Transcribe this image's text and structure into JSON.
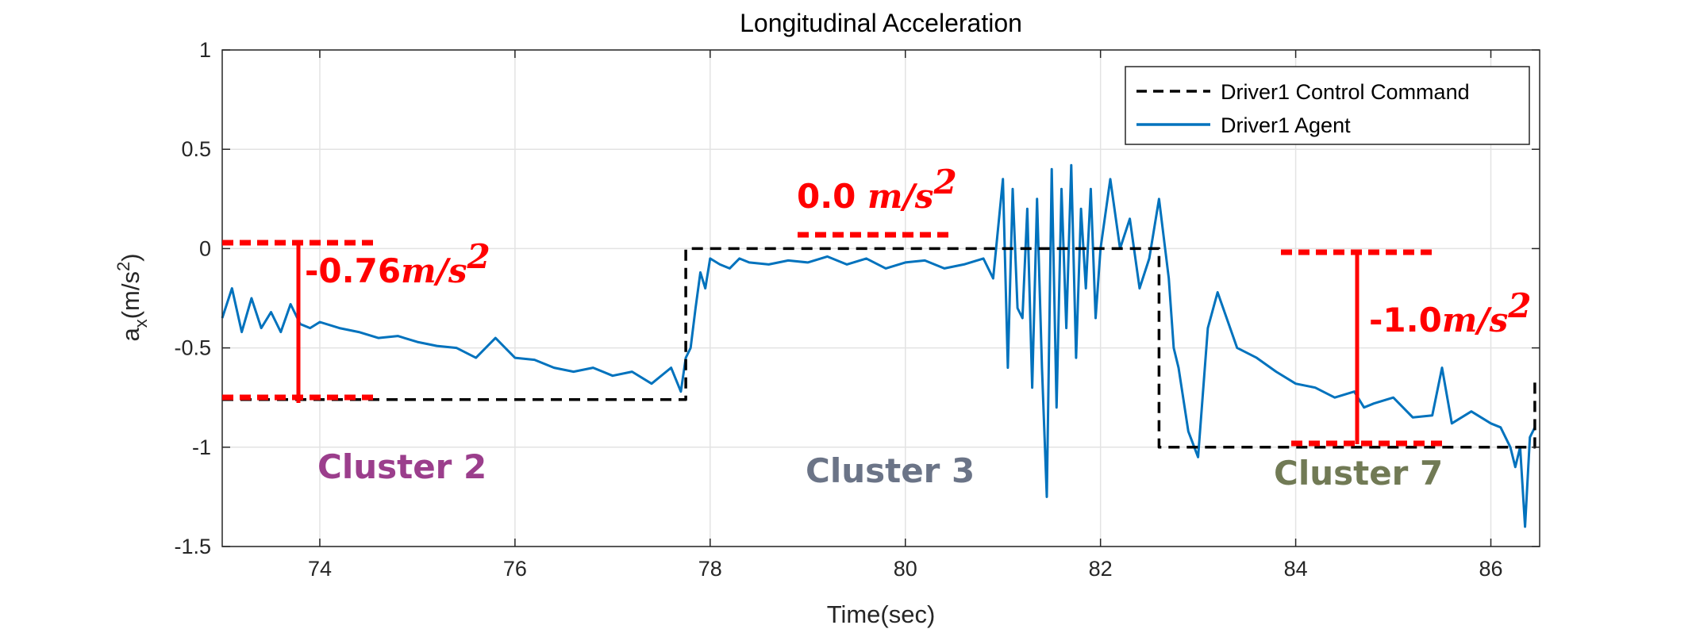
{
  "chart_data": {
    "type": "line",
    "title": "Longitudinal Acceleration",
    "xlabel": "Time(sec)",
    "ylabel_main": "a",
    "ylabel_sub": "x",
    "ylabel_unit": "(m/s",
    "ylabel_exp": "2",
    "ylabel_close": ")",
    "xlim": [
      73,
      86.5
    ],
    "ylim": [
      -1.5,
      1
    ],
    "xticks": [
      74,
      76,
      78,
      80,
      82,
      84,
      86
    ],
    "yticks": [
      -1.5,
      -1,
      -0.5,
      0,
      0.5,
      1
    ],
    "xtick_labels": [
      "74",
      "76",
      "78",
      "80",
      "82",
      "84",
      "86"
    ],
    "ytick_labels": [
      "-1.5",
      "-1",
      "-0.5",
      "0",
      "0.5",
      "1"
    ],
    "grid": true,
    "legend_position": "top-right",
    "series": [
      {
        "name": "Driver1 Control Command",
        "style": "dashed",
        "color": "#000000",
        "x": [
          73,
          77.75,
          77.75,
          82.6,
          82.6,
          86.45,
          86.45
        ],
        "y": [
          -0.76,
          -0.76,
          0,
          0,
          -1.0,
          -1.0,
          -0.65
        ]
      },
      {
        "name": "Driver1 Agent",
        "style": "solid",
        "color": "#0072BD",
        "x": [
          73.0,
          73.1,
          73.2,
          73.3,
          73.4,
          73.5,
          73.6,
          73.7,
          73.8,
          73.9,
          74.0,
          74.2,
          74.4,
          74.6,
          74.8,
          75.0,
          75.2,
          75.4,
          75.6,
          75.8,
          76.0,
          76.2,
          76.4,
          76.6,
          76.8,
          77.0,
          77.2,
          77.4,
          77.6,
          77.7,
          77.75,
          77.8,
          77.85,
          77.9,
          77.95,
          78.0,
          78.1,
          78.2,
          78.3,
          78.4,
          78.6,
          78.8,
          79.0,
          79.2,
          79.4,
          79.6,
          79.8,
          80.0,
          80.2,
          80.4,
          80.6,
          80.8,
          80.9,
          81.0,
          81.05,
          81.1,
          81.15,
          81.2,
          81.25,
          81.3,
          81.35,
          81.4,
          81.45,
          81.5,
          81.55,
          81.6,
          81.65,
          81.7,
          81.75,
          81.8,
          81.85,
          81.9,
          81.95,
          82.0,
          82.1,
          82.2,
          82.3,
          82.4,
          82.5,
          82.6,
          82.7,
          82.75,
          82.8,
          82.9,
          83.0,
          83.1,
          83.2,
          83.4,
          83.6,
          83.8,
          84.0,
          84.2,
          84.4,
          84.6,
          84.7,
          84.8,
          85.0,
          85.2,
          85.4,
          85.5,
          85.6,
          85.8,
          86.0,
          86.1,
          86.2,
          86.25,
          86.3,
          86.35,
          86.4,
          86.45
        ],
        "y": [
          -0.35,
          -0.2,
          -0.42,
          -0.25,
          -0.4,
          -0.32,
          -0.42,
          -0.28,
          -0.38,
          -0.4,
          -0.37,
          -0.4,
          -0.42,
          -0.45,
          -0.44,
          -0.47,
          -0.49,
          -0.5,
          -0.55,
          -0.45,
          -0.55,
          -0.56,
          -0.6,
          -0.62,
          -0.6,
          -0.64,
          -0.62,
          -0.68,
          -0.6,
          -0.72,
          -0.55,
          -0.5,
          -0.3,
          -0.12,
          -0.2,
          -0.05,
          -0.08,
          -0.1,
          -0.05,
          -0.07,
          -0.08,
          -0.06,
          -0.07,
          -0.04,
          -0.08,
          -0.05,
          -0.1,
          -0.07,
          -0.06,
          -0.1,
          -0.08,
          -0.05,
          -0.15,
          0.35,
          -0.6,
          0.3,
          -0.3,
          -0.35,
          0.2,
          -0.7,
          0.25,
          -0.6,
          -1.25,
          0.4,
          -0.8,
          0.3,
          -0.4,
          0.42,
          -0.55,
          0.2,
          -0.2,
          0.3,
          -0.35,
          0.0,
          0.35,
          0.0,
          0.15,
          -0.2,
          -0.05,
          0.25,
          -0.15,
          -0.5,
          -0.6,
          -0.92,
          -1.05,
          -0.4,
          -0.22,
          -0.5,
          -0.55,
          -0.62,
          -0.68,
          -0.7,
          -0.75,
          -0.72,
          -0.8,
          -0.78,
          -0.75,
          -0.85,
          -0.84,
          -0.6,
          -0.88,
          -0.82,
          -0.88,
          -0.9,
          -1.0,
          -1.1,
          -1.0,
          -1.4,
          -0.95,
          -0.9
        ]
      }
    ]
  },
  "annotations": {
    "cluster2_value": "-0.76",
    "cluster2_unit": "m/s",
    "cluster2_exp": "2",
    "cluster3_value": "0.0 ",
    "cluster3_unit": "m/s",
    "cluster3_exp": "2",
    "cluster7_value": "-1.0",
    "cluster7_unit": "m/s",
    "cluster7_exp": "2",
    "cluster2_label": "Cluster 2",
    "cluster3_label": "Cluster 3",
    "cluster7_label": "Cluster 7",
    "annotation_color": "#FF0000",
    "cluster2_color": "#9B3E8C",
    "cluster3_color": "#6B7487",
    "cluster7_color": "#717A55"
  }
}
